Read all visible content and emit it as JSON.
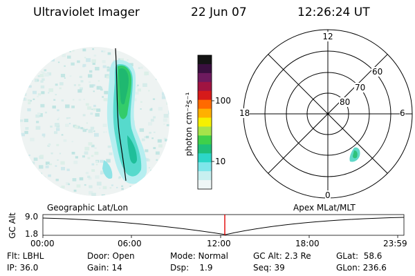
{
  "header": {
    "title": "Ultraviolet Imager",
    "date": "22 Jun 07",
    "time": "12:26:24 UT"
  },
  "colorbar": {
    "unit_label": "photon cm⁻²s⁻¹",
    "ticks": [
      "100",
      "10"
    ],
    "colors": [
      "#141414",
      "#3a0f3f",
      "#6e1a5e",
      "#a01441",
      "#d61a1a",
      "#ff6a00",
      "#ffb000",
      "#f6f000",
      "#a6e34a",
      "#3fd04a",
      "#1fbf7a",
      "#2dd6c8",
      "#7fe6ea",
      "#c8f0f0",
      "#eef6f6"
    ]
  },
  "polar_plot": {
    "mlt_labels": {
      "top": "12",
      "right": "6",
      "bottom": "0",
      "left": "18"
    },
    "lat_labels": [
      "60",
      "70",
      "80"
    ]
  },
  "timeline": {
    "y_label": "GC Alt",
    "y_top": "9.0",
    "y_bottom": "1.8",
    "left_title": "Geographic Lat/Lon",
    "right_title": "Apex MLat/MLT",
    "ticks": [
      "00:00",
      "06:00",
      "12:00",
      "18:00",
      "23:59"
    ],
    "cursor_color": "#e00000"
  },
  "status": {
    "filter": "Flt: LBHL",
    "door": "Door: Open",
    "mode": "Mode: Normal",
    "gc_alt": "GC Alt: 2.3 Re",
    "glat": "GLat:  58.6",
    "ip": "IP: 36.0",
    "gain": "Gain: 14",
    "dsp": "Dsp:    1.9",
    "seq": "Seq: 39",
    "glon": "GLon: 236.6"
  }
}
